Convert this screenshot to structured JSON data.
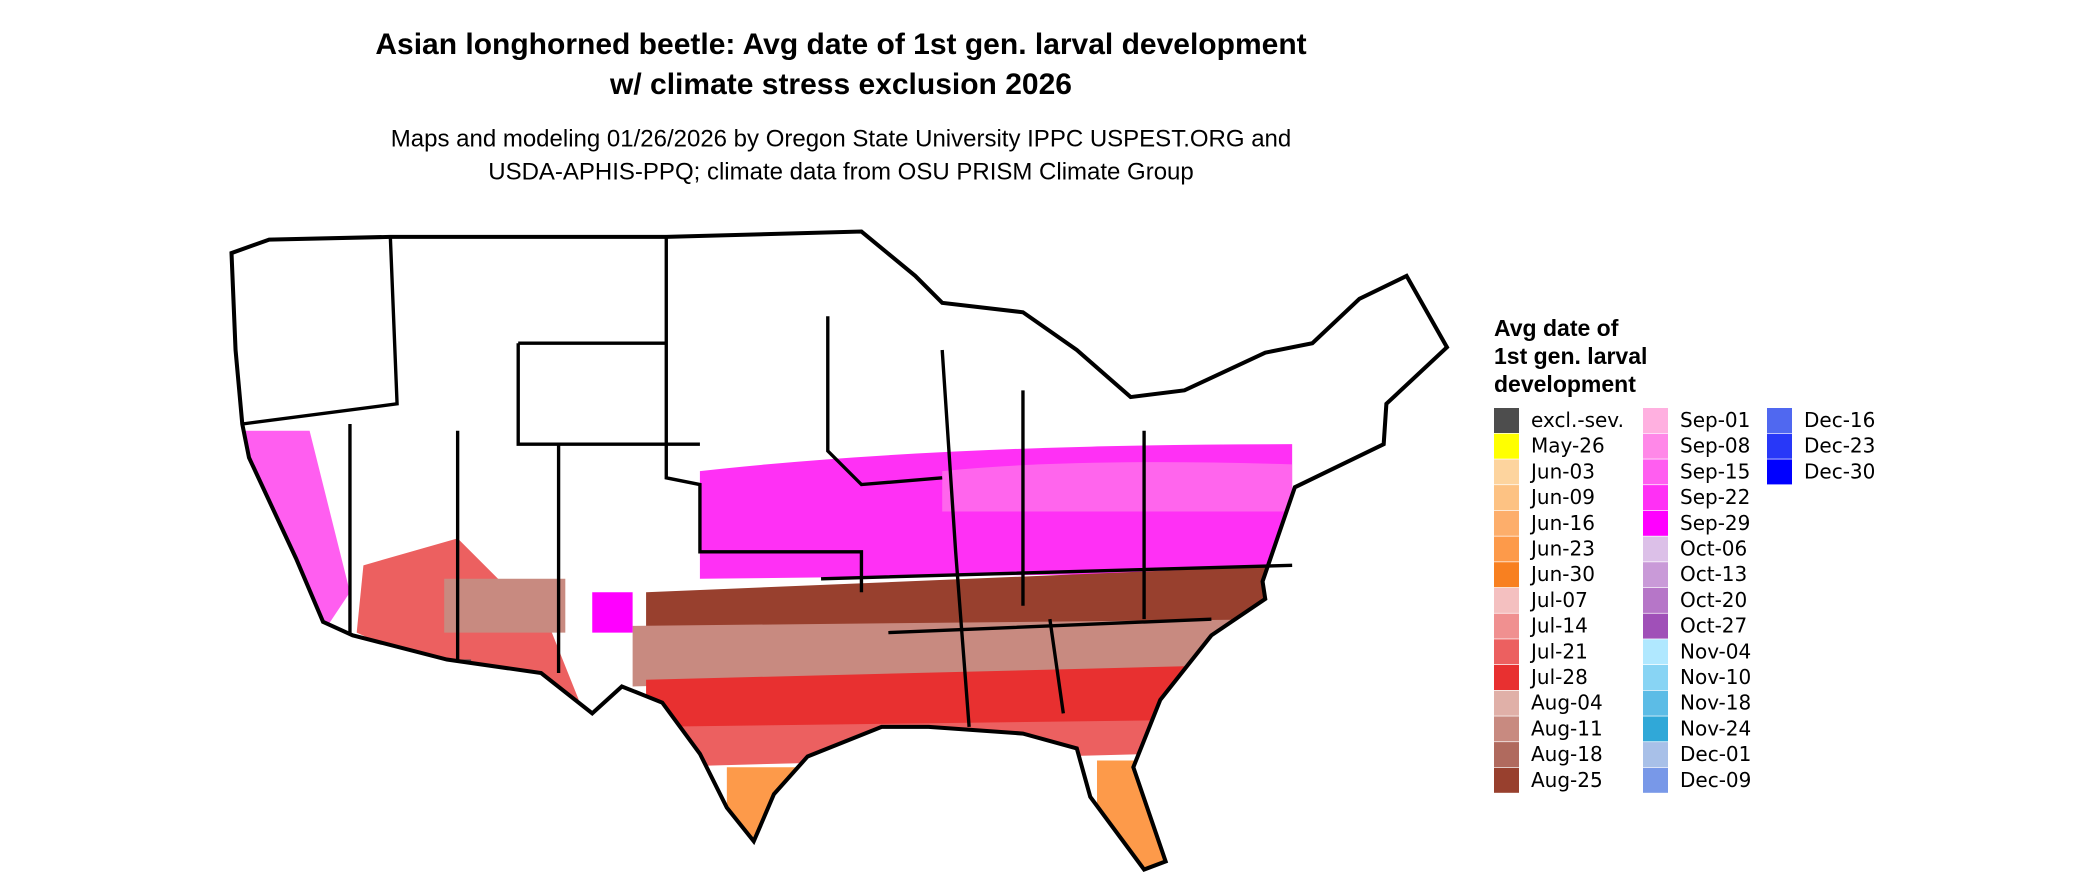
{
  "header": {
    "title": [
      "Asian longhorned beetle: Avg date of 1st gen. larval development",
      "w/ climate stress exclusion 2026"
    ],
    "subtitle": [
      "Maps and modeling 01/26/2026 by Oregon State University IPPC USPEST.ORG and",
      "USDA-APHIS-PPQ; climate data from OSU PRISM Climate Group"
    ]
  },
  "legend": {
    "title": [
      "Avg date of",
      "1st gen. larval",
      "development"
    ],
    "columns": [
      [
        {
          "label": "excl.-sev.",
          "color": "#4d4d4d"
        },
        {
          "label": "May-26",
          "color": "#ffff00"
        },
        {
          "label": "Jun-03",
          "color": "#fdd49e"
        },
        {
          "label": "Jun-09",
          "color": "#fdc283"
        },
        {
          "label": "Jun-16",
          "color": "#fdae6b"
        },
        {
          "label": "Jun-23",
          "color": "#fd9a4a"
        },
        {
          "label": "Jun-30",
          "color": "#f88020"
        },
        {
          "label": "Jul-07",
          "color": "#f4c0c0"
        },
        {
          "label": "Jul-14",
          "color": "#f09090"
        },
        {
          "label": "Jul-21",
          "color": "#ec6060"
        },
        {
          "label": "Jul-28",
          "color": "#e83030"
        },
        {
          "label": "Aug-04",
          "color": "#e0b0a8"
        },
        {
          "label": "Aug-11",
          "color": "#c88a80"
        },
        {
          "label": "Aug-18",
          "color": "#b06a5e"
        },
        {
          "label": "Aug-25",
          "color": "#98402e"
        }
      ],
      [
        {
          "label": "Sep-01",
          "color": "#ffb0e0"
        },
        {
          "label": "Sep-08",
          "color": "#ff88e8"
        },
        {
          "label": "Sep-15",
          "color": "#ff5ef0"
        },
        {
          "label": "Sep-22",
          "color": "#ff30f5"
        },
        {
          "label": "Sep-29",
          "color": "#ff00ff"
        },
        {
          "label": "Oct-06",
          "color": "#dcc0e8"
        },
        {
          "label": "Oct-13",
          "color": "#c99ad8"
        },
        {
          "label": "Oct-20",
          "color": "#b676c8"
        },
        {
          "label": "Oct-27",
          "color": "#a050b8"
        },
        {
          "label": "Nov-04",
          "color": "#b0e8ff"
        },
        {
          "label": "Nov-10",
          "color": "#88d4f4"
        },
        {
          "label": "Nov-18",
          "color": "#5cbce6"
        },
        {
          "label": "Nov-24",
          "color": "#30a8d8"
        },
        {
          "label": "Dec-01",
          "color": "#a8c0e8"
        },
        {
          "label": "Dec-09",
          "color": "#7898e8"
        }
      ],
      [
        {
          "label": "Dec-16",
          "color": "#5068f0"
        },
        {
          "label": "Dec-23",
          "color": "#2838f8"
        },
        {
          "label": "Dec-30",
          "color": "#0000ff"
        }
      ]
    ]
  }
}
